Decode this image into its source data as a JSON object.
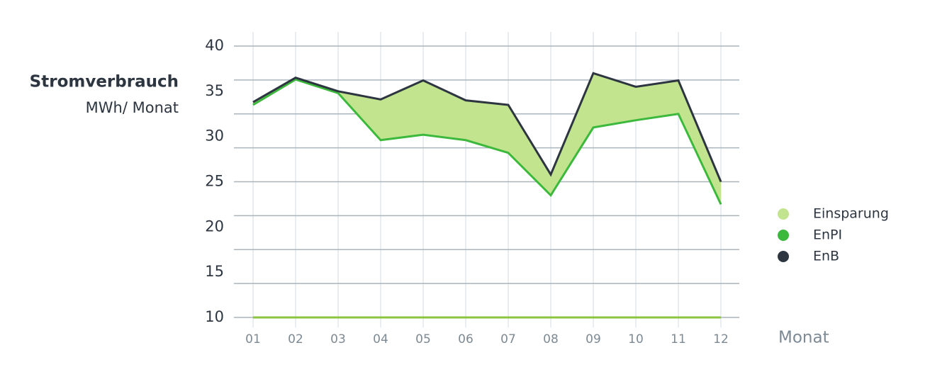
{
  "chart_data": {
    "type": "line",
    "y_title": "Stromverbrauch",
    "y_unit": "MWh/ Monat",
    "x_title": "Monat",
    "categories": [
      "01",
      "02",
      "03",
      "04",
      "05",
      "06",
      "07",
      "08",
      "09",
      "10",
      "11",
      "12"
    ],
    "series": [
      {
        "name": "EnPI",
        "color": "#3cb93c",
        "values": [
          33.5,
          36.3,
          34.8,
          29.6,
          30.2,
          29.6,
          28.2,
          23.5,
          31.0,
          31.8,
          32.5,
          22.5
        ]
      },
      {
        "name": "EnB",
        "color": "#2d3640",
        "values": [
          33.8,
          36.5,
          35.0,
          34.1,
          36.2,
          34.0,
          33.5,
          25.8,
          37.0,
          35.5,
          36.2,
          25.0
        ]
      }
    ],
    "fill_between": {
      "name": "Einsparung",
      "color": "#c3e48e"
    },
    "ylim": [
      10,
      40
    ],
    "yticks": [
      10,
      15,
      20,
      25,
      30,
      35,
      40
    ],
    "grid_lines": [
      10,
      13.75,
      17.5,
      21.25,
      25,
      28.75,
      32.5,
      36.25,
      40
    ],
    "grid": true
  }
}
